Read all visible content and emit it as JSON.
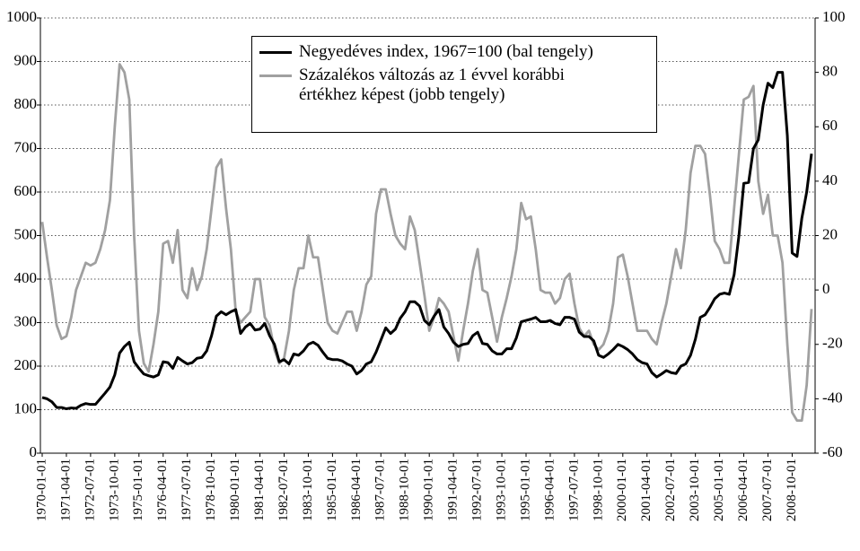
{
  "chart_data": {
    "type": "line",
    "categories": [
      "1970-01-01",
      null,
      null,
      null,
      null,
      "1971-04-01",
      null,
      null,
      null,
      null,
      "1972-07-01",
      null,
      null,
      null,
      null,
      "1973-10-01",
      null,
      null,
      null,
      null,
      "1975-01-01",
      null,
      null,
      null,
      null,
      "1976-04-01",
      null,
      null,
      null,
      null,
      "1977-07-01",
      null,
      null,
      null,
      null,
      "1978-10-01",
      null,
      null,
      null,
      null,
      "1980-01-01",
      null,
      null,
      null,
      null,
      "1981-04-01",
      null,
      null,
      null,
      null,
      "1982-07-01",
      null,
      null,
      null,
      null,
      "1983-10-01",
      null,
      null,
      null,
      null,
      "1985-01-01",
      null,
      null,
      null,
      null,
      "1986-04-01",
      null,
      null,
      null,
      null,
      "1987-07-01",
      null,
      null,
      null,
      null,
      "1988-10-01",
      null,
      null,
      null,
      null,
      "1990-01-01",
      null,
      null,
      null,
      null,
      "1991-04-01",
      null,
      null,
      null,
      null,
      "1992-07-01",
      null,
      null,
      null,
      null,
      "1993-10-01",
      null,
      null,
      null,
      null,
      "1995-01-01",
      null,
      null,
      null,
      null,
      "1996-04-01",
      null,
      null,
      null,
      null,
      "1997-07-01",
      null,
      null,
      null,
      null,
      "1998-10-01",
      null,
      null,
      null,
      null,
      "2000-01-01",
      null,
      null,
      null,
      null,
      "2001-04-01",
      null,
      null,
      null,
      null,
      "2002-07-01",
      null,
      null,
      null,
      null,
      "2003-10-01",
      null,
      null,
      null,
      null,
      "2005-01-01",
      null,
      null,
      null,
      null,
      "2006-04-01",
      null,
      null,
      null,
      null,
      "2007-07-01",
      null,
      null,
      null,
      null,
      "2008-10-01",
      null,
      null,
      null,
      null
    ],
    "series": [
      {
        "name": "Negyedéves index, 1967=100 (bal tengely)",
        "color": "#000000",
        "axis": "y",
        "values": [
          128,
          125,
          118,
          105,
          105,
          102,
          104,
          103,
          110,
          114,
          112,
          112,
          125,
          138,
          152,
          180,
          230,
          245,
          255,
          210,
          195,
          182,
          178,
          175,
          180,
          210,
          208,
          195,
          220,
          212,
          205,
          208,
          218,
          220,
          235,
          270,
          315,
          325,
          318,
          325,
          330,
          275,
          290,
          298,
          283,
          285,
          298,
          270,
          250,
          210,
          215,
          205,
          228,
          225,
          235,
          250,
          255,
          248,
          232,
          218,
          215,
          215,
          212,
          205,
          200,
          182,
          190,
          205,
          210,
          232,
          260,
          288,
          275,
          285,
          310,
          325,
          348,
          348,
          338,
          305,
          295,
          315,
          330,
          290,
          275,
          255,
          245,
          250,
          252,
          270,
          278,
          252,
          250,
          235,
          228,
          228,
          240,
          240,
          265,
          302,
          305,
          308,
          312,
          302,
          302,
          305,
          298,
          295,
          312,
          312,
          308,
          278,
          268,
          268,
          258,
          225,
          220,
          228,
          238,
          250,
          245,
          238,
          228,
          215,
          208,
          205,
          185,
          175,
          182,
          190,
          185,
          183,
          200,
          205,
          225,
          262,
          312,
          318,
          335,
          355,
          365,
          368,
          365,
          410,
          500,
          620,
          622,
          700,
          720,
          800,
          850,
          840,
          875,
          875,
          730,
          460,
          452,
          540,
          600,
          688
        ]
      },
      {
        "name": "Százalékos változás az 1 évvel korábbi értékhez képest (jobb tengely)",
        "color": "#a0a0a0",
        "axis": "y2",
        "values": [
          25,
          12,
          0,
          -13,
          -18,
          -17,
          -10,
          0,
          5,
          10,
          9,
          10,
          15,
          22,
          33,
          60,
          83,
          80,
          70,
          20,
          -15,
          -27,
          -30,
          -20,
          -8,
          17,
          18,
          10,
          22,
          0,
          -3,
          8,
          0,
          5,
          15,
          30,
          45,
          48,
          30,
          15,
          -8,
          -12,
          -10,
          -8,
          4,
          4,
          -10,
          -13,
          -22,
          -27,
          -25,
          -15,
          0,
          8,
          8,
          20,
          12,
          12,
          0,
          -12,
          -15,
          -16,
          -12,
          -8,
          -8,
          -15,
          -8,
          2,
          5,
          28,
          37,
          37,
          28,
          20,
          17,
          15,
          27,
          22,
          10,
          -2,
          -15,
          -10,
          -3,
          -5,
          -8,
          -17,
          -26,
          -15,
          -5,
          7,
          15,
          0,
          -1,
          -10,
          -19,
          -10,
          -3,
          5,
          15,
          32,
          26,
          27,
          15,
          0,
          -1,
          -1,
          -5,
          -3,
          4,
          6,
          -5,
          -14,
          -17,
          -15,
          -20,
          -22,
          -20,
          -15,
          -5,
          12,
          13,
          5,
          -5,
          -15,
          -15,
          -15,
          -18,
          -20,
          -12,
          -5,
          5,
          15,
          8,
          22,
          43,
          53,
          53,
          50,
          35,
          18,
          15,
          10,
          10,
          30,
          50,
          70,
          71,
          75,
          40,
          28,
          35,
          20,
          20,
          10,
          -20,
          -45,
          -48,
          -48,
          -35,
          -7
        ]
      }
    ],
    "ylim": [
      0,
      1000
    ],
    "yticks": [
      0,
      100,
      200,
      300,
      400,
      500,
      600,
      700,
      800,
      900,
      1000
    ],
    "y2lim": [
      -60,
      100
    ],
    "y2ticks": [
      -60,
      -40,
      -20,
      0,
      20,
      40,
      60,
      80,
      100
    ],
    "grid": true,
    "legend": "top"
  }
}
